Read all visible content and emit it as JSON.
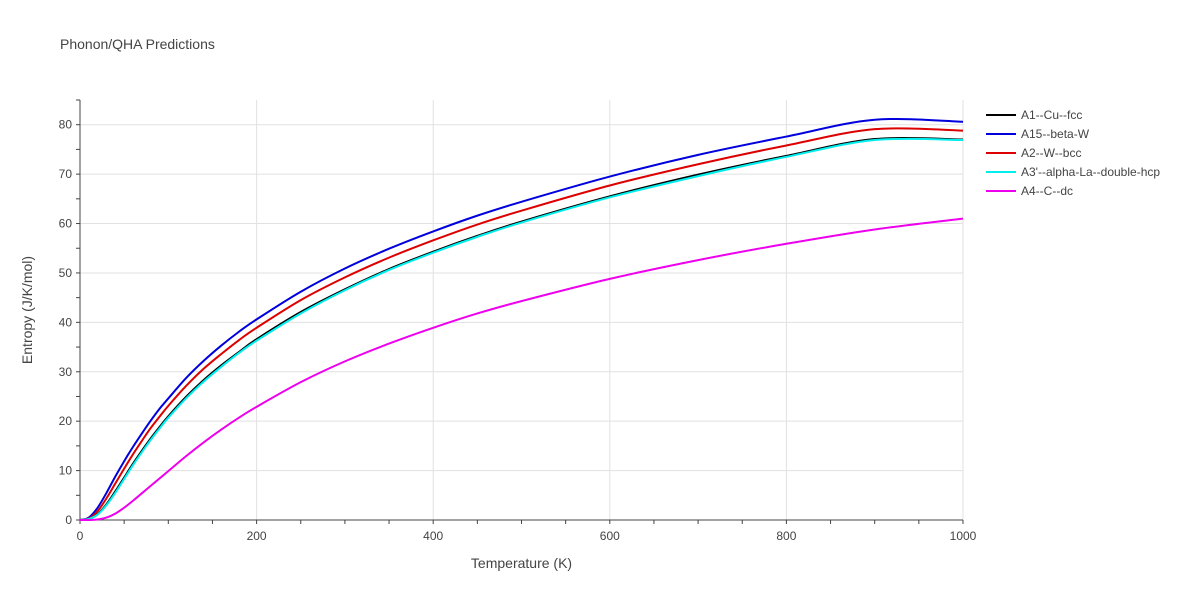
{
  "chart_data": {
    "type": "line",
    "title": "Phonon/QHA Predictions",
    "xlabel": "Temperature (K)",
    "ylabel": "Entropy (J/K/mol)",
    "xlim": [
      0,
      1000
    ],
    "ylim": [
      0,
      85
    ],
    "x_ticks": [
      0,
      200,
      400,
      600,
      800,
      1000
    ],
    "y_ticks": [
      0,
      10,
      20,
      30,
      40,
      50,
      60,
      70,
      80
    ],
    "grid": true,
    "legend_position": "top-right",
    "x": [
      0,
      10,
      20,
      30,
      40,
      50,
      60,
      70,
      80,
      90,
      100,
      120,
      140,
      160,
      180,
      200,
      250,
      300,
      350,
      400,
      450,
      500,
      600,
      700,
      800,
      900,
      1000
    ],
    "series": [
      {
        "name": "A1--Cu--fcc",
        "color": "#000000",
        "values": [
          0,
          0.2,
          1.2,
          3.2,
          5.8,
          8.6,
          11.4,
          14.0,
          16.5,
          18.8,
          21.0,
          24.9,
          28.3,
          31.3,
          34.0,
          36.6,
          42.1,
          46.7,
          50.8,
          54.3,
          57.5,
          60.4,
          65.5,
          69.9,
          73.7,
          77.1,
          77.0
        ]
      },
      {
        "name": "A15--beta-W",
        "color": "#0000dd",
        "values": [
          0,
          0.5,
          2.5,
          5.5,
          8.8,
          11.9,
          14.8,
          17.5,
          20.1,
          22.5,
          24.6,
          28.7,
          32.2,
          35.3,
          38.1,
          40.6,
          46.2,
          50.9,
          54.9,
          58.4,
          61.6,
          64.4,
          69.5,
          73.9,
          77.6,
          81.0,
          80.6
        ]
      },
      {
        "name": "A2--W--bcc",
        "color": "#dd0000",
        "values": [
          0,
          0.3,
          1.8,
          4.4,
          7.4,
          10.4,
          13.3,
          16.0,
          18.6,
          20.9,
          23.1,
          27.1,
          30.6,
          33.6,
          36.4,
          38.9,
          44.5,
          49.1,
          53.1,
          56.6,
          59.8,
          62.6,
          67.7,
          72.0,
          75.8,
          79.1,
          78.8
        ]
      },
      {
        "name": "A3'--alpha-La--double-hcp",
        "color": "#00eeee",
        "values": [
          0,
          0.2,
          1.1,
          3.0,
          5.5,
          8.3,
          11.1,
          13.7,
          16.2,
          18.5,
          20.7,
          24.6,
          28.0,
          31.0,
          33.8,
          36.3,
          41.8,
          46.5,
          50.6,
          54.1,
          57.3,
          60.2,
          65.3,
          69.6,
          73.5,
          76.9,
          76.9
        ]
      },
      {
        "name": "A4--C--dc",
        "color": "#ee00ee",
        "values": [
          0,
          0.0,
          0.1,
          0.5,
          1.3,
          2.5,
          3.9,
          5.4,
          6.9,
          8.4,
          9.9,
          12.9,
          15.7,
          18.3,
          20.7,
          22.9,
          27.9,
          32.1,
          35.7,
          38.9,
          41.8,
          44.3,
          48.8,
          52.6,
          55.9,
          58.8,
          61.0
        ]
      }
    ]
  }
}
